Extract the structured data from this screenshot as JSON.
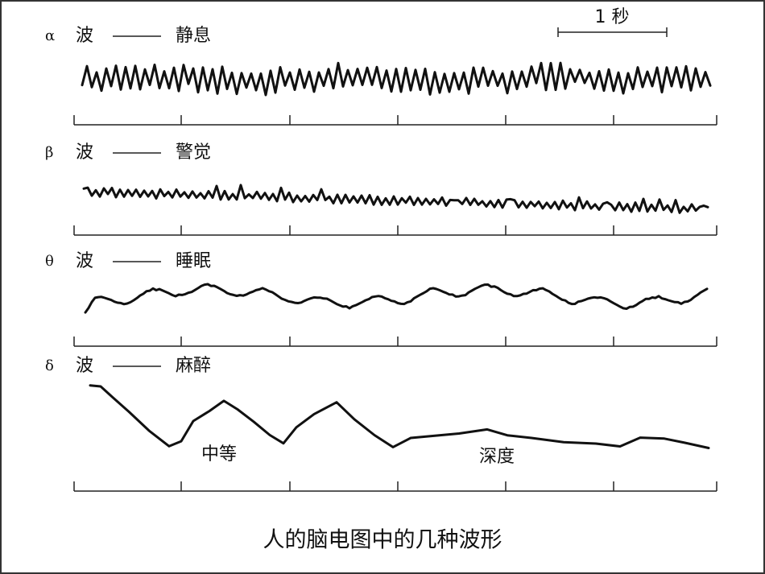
{
  "scale_bar": {
    "label": "1 秒"
  },
  "rows": [
    {
      "symbol": "α",
      "wave": "波",
      "state": "静息"
    },
    {
      "symbol": "β",
      "wave": "波",
      "state": "警觉"
    },
    {
      "symbol": "θ",
      "wave": "波",
      "state": "睡眠"
    },
    {
      "symbol": "δ",
      "wave": "波",
      "state": "麻醉",
      "annotations": [
        "中等",
        "深度"
      ]
    }
  ],
  "caption": "人的脑电图中的几种波形"
}
